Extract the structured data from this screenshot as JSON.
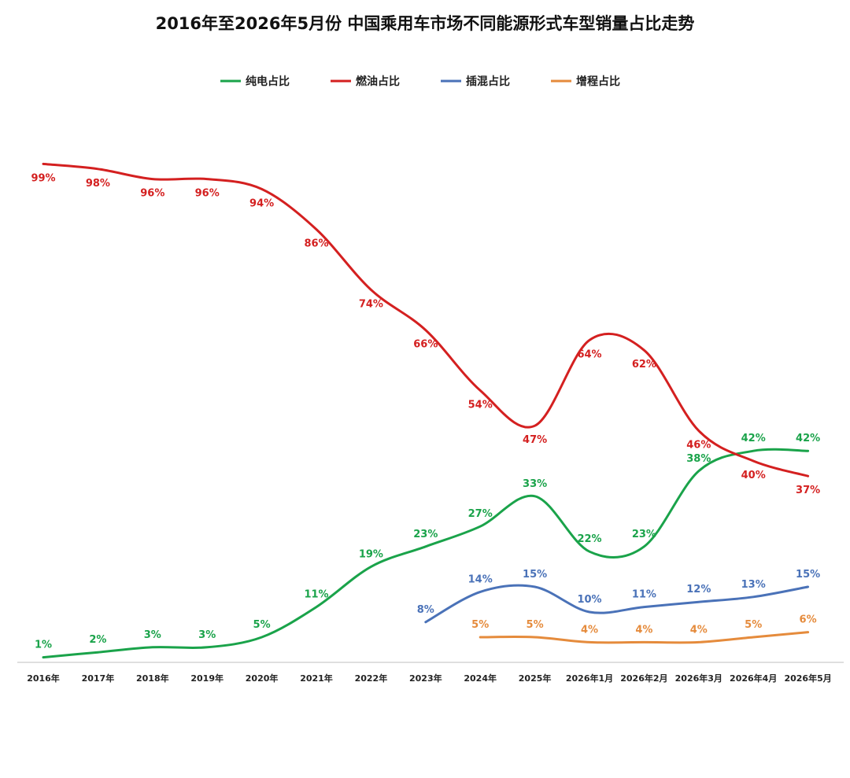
{
  "chart_data": {
    "type": "line",
    "title": "2016年至2026年5月份 中国乘用车市场不同能源形式车型销量占比走势",
    "categories": [
      "2016年",
      "2017年",
      "2018年",
      "2019年",
      "2020年",
      "2021年",
      "2022年",
      "2023年",
      "2024年",
      "2025年",
      "2026年1月",
      "2026年2月",
      "2026年3月",
      "2026年4月",
      "2026年5月"
    ],
    "ylim": [
      0,
      100
    ],
    "unit": "%",
    "grid": false,
    "legend_position": "top-center",
    "series": [
      {
        "name": "纯电占比",
        "color": "#1aa34a",
        "values": [
          1,
          2,
          3,
          3,
          5,
          11,
          19,
          23,
          27,
          33,
          22,
          23,
          38,
          42,
          42
        ]
      },
      {
        "name": "燃油占比",
        "color": "#d42020",
        "values": [
          99,
          98,
          96,
          96,
          94,
          86,
          74,
          66,
          54,
          47,
          64,
          62,
          46,
          40,
          37
        ]
      },
      {
        "name": "插混占比",
        "color": "#4a72b8",
        "values": [
          null,
          null,
          null,
          null,
          null,
          null,
          null,
          8,
          14,
          15,
          10,
          11,
          12,
          13,
          15
        ]
      },
      {
        "name": "增程占比",
        "color": "#e58b3c",
        "values": [
          null,
          null,
          null,
          null,
          null,
          null,
          null,
          null,
          5,
          5,
          4,
          4,
          4,
          5,
          6
        ]
      }
    ]
  }
}
